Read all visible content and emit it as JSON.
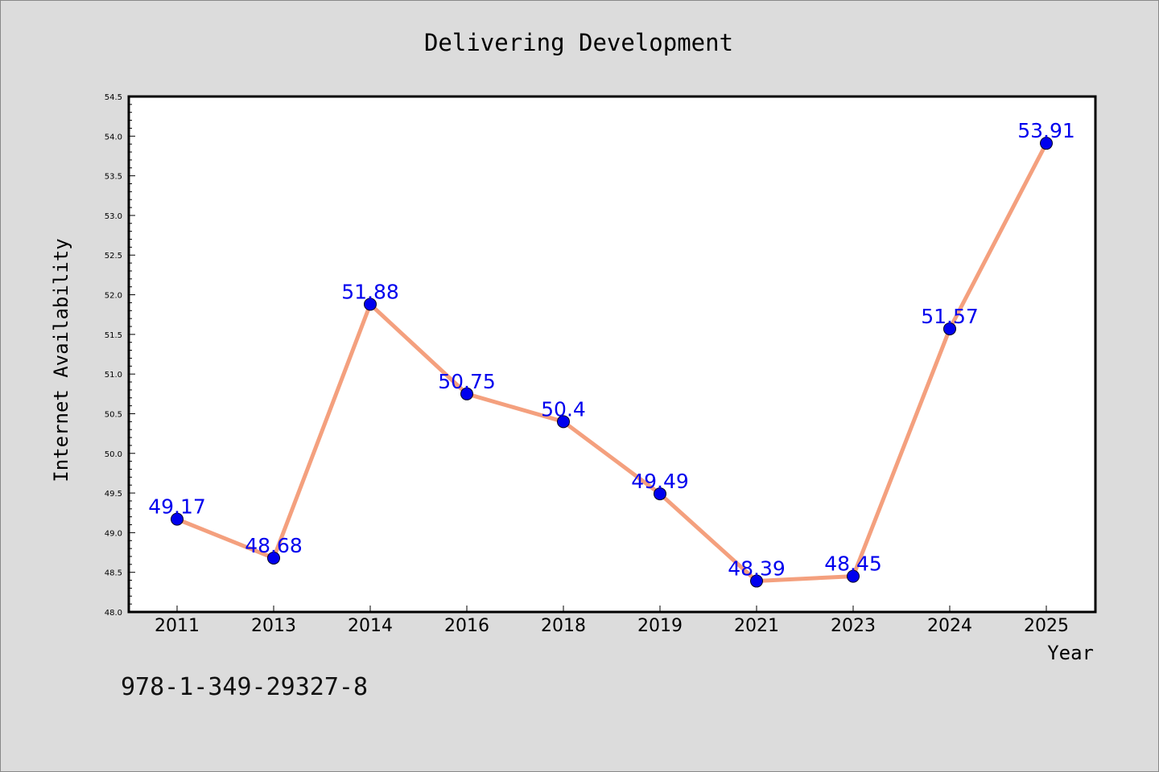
{
  "chart_data": {
    "type": "line",
    "title": "Delivering Development",
    "xlabel": "Year",
    "ylabel": "Internet Availability",
    "categories": [
      "2011",
      "2013",
      "2014",
      "2016",
      "2018",
      "2019",
      "2021",
      "2023",
      "2024",
      "2025"
    ],
    "series": [
      {
        "values": [
          49.17,
          48.68,
          51.88,
          50.75,
          50.4,
          49.49,
          48.39,
          48.45,
          51.57,
          53.91
        ],
        "labels": [
          "49.17",
          "48.68",
          "51.88",
          "50.75",
          "50.4",
          "49.49",
          "48.39",
          "48.45",
          "51.57",
          "53.91"
        ]
      }
    ],
    "ylim": [
      48.0,
      54.5
    ],
    "yticks": [
      "48.0",
      "48.5",
      "49.0",
      "49.5",
      "50.0",
      "50.5",
      "51.0",
      "51.5",
      "52.0",
      "52.5",
      "53.0",
      "53.5",
      "54.0",
      "54.5"
    ],
    "grid": false,
    "legend": "none",
    "colors": {
      "line": "#f4a07e",
      "marker": "#0000ee",
      "label": "#0000ee",
      "plot_background": "#ffffff",
      "figure_background": "#dcdcdc"
    }
  },
  "footer": {
    "isbn": "978-1-349-29327-8"
  }
}
